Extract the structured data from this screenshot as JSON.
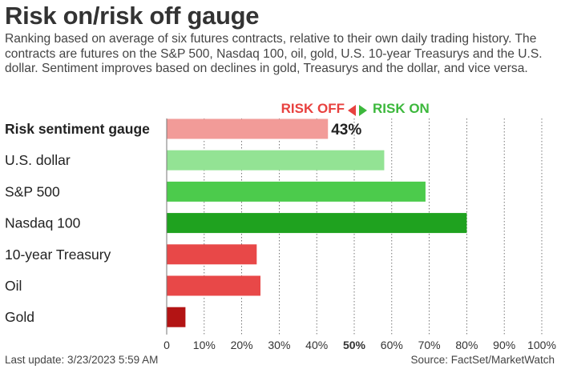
{
  "header": {
    "title": "Risk on/risk off gauge",
    "subtitle": "Ranking based on average of six futures contracts, relative to their own daily trading history. The contracts are futures on the S&P 500, Nasdaq 100, oil, gold, U.S. 10-year Treasurys and the U.S. dollar. Sentiment improves based on declines in gold, Treasurys and the dollar, and vice versa."
  },
  "legend": {
    "risk_off": "RISK OFF",
    "risk_on": "RISK ON",
    "risk_off_color": "#e8413f",
    "risk_on_color": "#3cb83c"
  },
  "chart_data": {
    "type": "bar",
    "orientation": "horizontal",
    "categories": [
      "Risk sentiment gauge",
      "U.S. dollar",
      "S&P 500",
      "Nasdaq 100",
      "10-year Treasury",
      "Oil",
      "Gold"
    ],
    "values": [
      43,
      58,
      69,
      80,
      24,
      25,
      5
    ],
    "colors": [
      "#f29b98",
      "#93e394",
      "#4ccb4c",
      "#1fa21f",
      "#e84848",
      "#e84848",
      "#b31414"
    ],
    "value_labels": [
      "43%",
      "",
      "",
      "",
      "",
      "",
      ""
    ],
    "xlim": [
      0,
      100
    ],
    "xticks": [
      "0",
      "10%",
      "20%",
      "30%",
      "40%",
      "50%",
      "60%",
      "70%",
      "80%",
      "90%",
      "100%"
    ],
    "grid": "vertical dotted",
    "midline": 50,
    "xlabel": "",
    "ylabel": ""
  },
  "footer": {
    "last_update": "Last update: 3/23/2023 5:59 AM",
    "source": "Source: FactSet/MarketWatch"
  }
}
